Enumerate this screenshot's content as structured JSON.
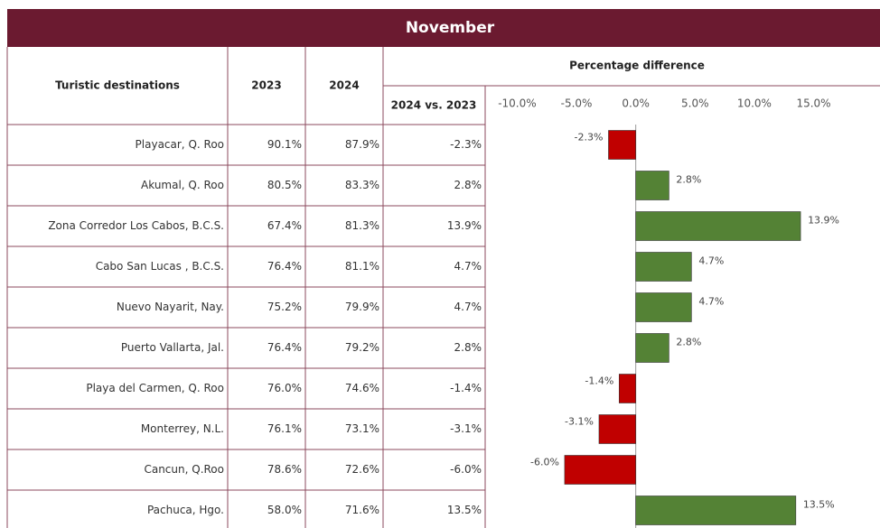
{
  "title": "November",
  "table": {
    "headers": [
      "Turistic destinations",
      "2023",
      "2024",
      "2024 vs. 2023"
    ],
    "rows": [
      [
        "Playacar, Q. Roo",
        "90.1%",
        "87.9%",
        "-2.3%"
      ],
      [
        "Akumal, Q. Roo",
        "80.5%",
        "83.3%",
        "2.8%"
      ],
      [
        "Zona Corredor Los Cabos, B.C.S.",
        "67.4%",
        "81.3%",
        "13.9%"
      ],
      [
        "Cabo San Lucas , B.C.S.",
        "76.4%",
        "81.1%",
        "4.7%"
      ],
      [
        "Nuevo Nayarit, Nay.",
        "75.2%",
        "79.9%",
        "4.7%"
      ],
      [
        "Puerto Vallarta, Jal.",
        "76.4%",
        "79.2%",
        "2.8%"
      ],
      [
        "Playa del Carmen, Q. Roo",
        "76.0%",
        "74.6%",
        "-1.4%"
      ],
      [
        "Monterrey, N.L.",
        "76.1%",
        "73.1%",
        "-3.1%"
      ],
      [
        "Cancun, Q.Roo",
        "78.6%",
        "72.6%",
        "-6.0%"
      ],
      [
        "Pachuca, Hgo.",
        "58.0%",
        "71.6%",
        "13.5%"
      ]
    ]
  },
  "chart_data": {
    "type": "bar",
    "orientation": "horizontal",
    "title": "Percentage difference",
    "values": [
      -2.3,
      2.8,
      13.9,
      4.7,
      4.7,
      2.8,
      -1.4,
      -3.1,
      -6.0,
      13.5
    ],
    "value_labels": [
      "-2.3%",
      "2.8%",
      "13.9%",
      "4.7%",
      "4.7%",
      "2.8%",
      "-1.4%",
      "-3.1%",
      "-6.0%",
      "13.5%"
    ],
    "xlim": [
      -12.7,
      20.6
    ],
    "xticks": [
      {
        "value": -10,
        "label": "-10.0%"
      },
      {
        "value": -5,
        "label": "-5.0%"
      },
      {
        "value": 0,
        "label": "0.0%"
      },
      {
        "value": 5,
        "label": "5.0%"
      },
      {
        "value": 10,
        "label": "10.0%"
      },
      {
        "value": 15,
        "label": "15.0%"
      }
    ],
    "colors": {
      "positive": "#548235",
      "negative": "#c00000"
    }
  }
}
